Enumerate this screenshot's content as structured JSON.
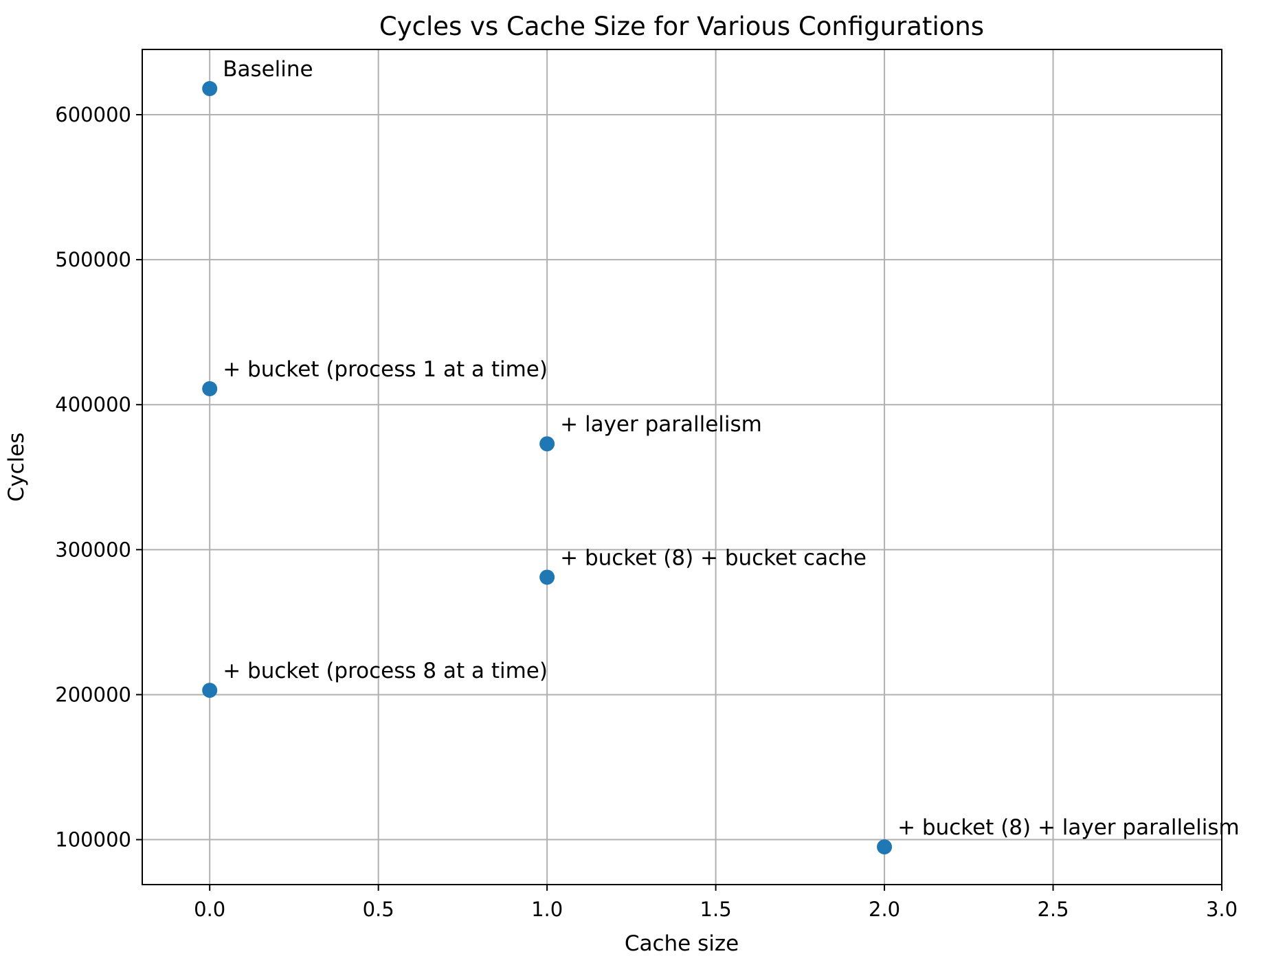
{
  "chart_data": {
    "type": "scatter",
    "title": "Cycles vs Cache Size for Various Configurations",
    "xlabel": "Cache size",
    "ylabel": "Cycles",
    "xlim": [
      -0.2,
      3.0
    ],
    "ylim": [
      69000,
      645000
    ],
    "xticks": [
      "0.0",
      "0.5",
      "1.0",
      "1.5",
      "2.0",
      "2.5",
      "3.0"
    ],
    "xtick_values": [
      0.0,
      0.5,
      1.0,
      1.5,
      2.0,
      2.5,
      3.0
    ],
    "yticks": [
      "100000",
      "200000",
      "300000",
      "400000",
      "500000",
      "600000"
    ],
    "ytick_values": [
      100000,
      200000,
      300000,
      400000,
      500000,
      600000
    ],
    "grid": true,
    "marker_color": "#1f77b4",
    "points": [
      {
        "x": 0,
        "y": 618000,
        "label": "Baseline"
      },
      {
        "x": 0,
        "y": 411000,
        "label": "+ bucket (process 1 at a time)"
      },
      {
        "x": 1,
        "y": 373000,
        "label": "+ layer parallelism"
      },
      {
        "x": 1,
        "y": 281000,
        "label": "+ bucket (8) + bucket cache"
      },
      {
        "x": 0,
        "y": 203000,
        "label": "+ bucket (process 8 at a time)"
      },
      {
        "x": 2,
        "y": 95000,
        "label": "+ bucket (8) + layer parallelism"
      }
    ]
  }
}
